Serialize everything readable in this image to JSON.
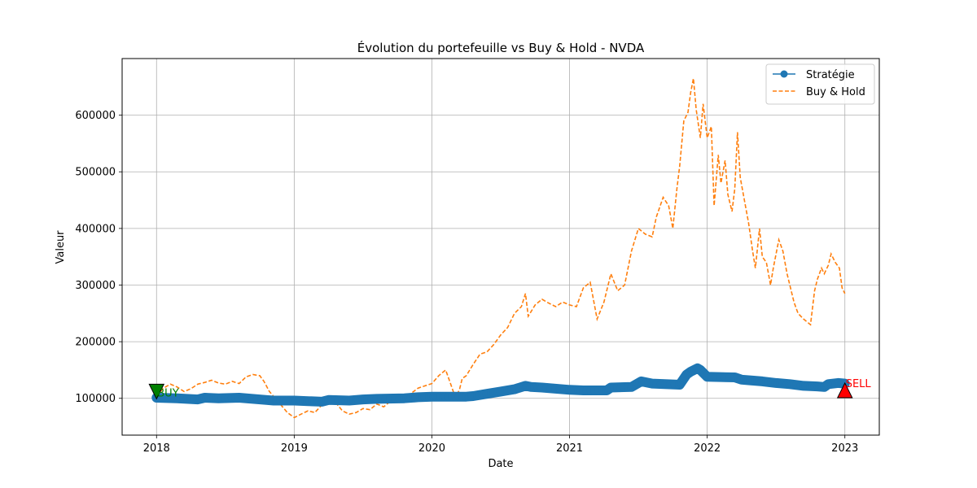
{
  "chart_data": {
    "type": "line",
    "title": "Évolution du portefeuille vs Buy & Hold - NVDA",
    "xlabel": "Date",
    "ylabel": "Valeur",
    "xlim": [
      2017.75,
      2023.25
    ],
    "ylim": [
      35000,
      700000
    ],
    "grid": true,
    "legend_position": "top-right",
    "x_ticks": [
      2018,
      2019,
      2020,
      2021,
      2022,
      2023
    ],
    "x_tick_labels": [
      "2018",
      "2019",
      "2020",
      "2021",
      "2022",
      "2023"
    ],
    "y_ticks": [
      100000,
      200000,
      300000,
      400000,
      500000,
      600000
    ],
    "y_tick_labels": [
      "100000",
      "200000",
      "300000",
      "400000",
      "500000",
      "600000"
    ],
    "series": [
      {
        "name": "Stratégie",
        "color": "#1f77b4",
        "style": "solid-marker",
        "x": [
          2018.0,
          2018.15,
          2018.3,
          2018.35,
          2018.45,
          2018.6,
          2018.8,
          2018.85,
          2019.0,
          2019.1,
          2019.2,
          2019.25,
          2019.4,
          2019.5,
          2019.6,
          2019.8,
          2019.9,
          2020.0,
          2020.1,
          2020.25,
          2020.3,
          2020.4,
          2020.5,
          2020.6,
          2020.68,
          2020.72,
          2020.8,
          2021.0,
          2021.1,
          2021.27,
          2021.3,
          2021.45,
          2021.52,
          2021.6,
          2021.8,
          2021.85,
          2021.88,
          2021.93,
          2021.95,
          2022.0,
          2022.2,
          2022.25,
          2022.3,
          2022.4,
          2022.5,
          2022.6,
          2022.7,
          2022.8,
          2022.85,
          2022.88,
          2022.95,
          2023.0
        ],
        "y": [
          101000,
          100000,
          98000,
          101000,
          100000,
          101000,
          97000,
          96000,
          96000,
          95000,
          94000,
          97000,
          96000,
          98000,
          99000,
          100000,
          102000,
          103000,
          103000,
          103000,
          104000,
          108000,
          112000,
          116000,
          122000,
          120000,
          119000,
          115000,
          114000,
          114000,
          119000,
          120000,
          130000,
          126000,
          124000,
          142000,
          147000,
          153000,
          150000,
          138000,
          137000,
          133000,
          132000,
          130000,
          127000,
          125000,
          122000,
          121000,
          120000,
          125000,
          127000,
          126000
        ]
      },
      {
        "name": "Buy & Hold",
        "color": "#ff7f0e",
        "style": "dashed",
        "x": [
          2018.0,
          2018.05,
          2018.1,
          2018.15,
          2018.2,
          2018.25,
          2018.3,
          2018.35,
          2018.4,
          2018.45,
          2018.5,
          2018.55,
          2018.6,
          2018.65,
          2018.7,
          2018.75,
          2018.78,
          2018.82,
          2018.88,
          2018.95,
          2019.0,
          2019.05,
          2019.1,
          2019.15,
          2019.2,
          2019.25,
          2019.3,
          2019.35,
          2019.4,
          2019.45,
          2019.5,
          2019.55,
          2019.6,
          2019.65,
          2019.7,
          2019.75,
          2019.8,
          2019.85,
          2019.9,
          2019.95,
          2020.0,
          2020.05,
          2020.1,
          2020.13,
          2020.17,
          2020.2,
          2020.22,
          2020.25,
          2020.3,
          2020.35,
          2020.4,
          2020.45,
          2020.5,
          2020.55,
          2020.6,
          2020.65,
          2020.68,
          2020.7,
          2020.75,
          2020.8,
          2020.85,
          2020.9,
          2020.95,
          2021.0,
          2021.05,
          2021.1,
          2021.15,
          2021.2,
          2021.25,
          2021.3,
          2021.35,
          2021.4,
          2021.45,
          2021.5,
          2021.55,
          2021.6,
          2021.63,
          2021.68,
          2021.72,
          2021.75,
          2021.78,
          2021.8,
          2021.83,
          2021.86,
          2021.88,
          2021.9,
          2021.92,
          2021.95,
          2021.97,
          2022.0,
          2022.03,
          2022.05,
          2022.08,
          2022.1,
          2022.13,
          2022.15,
          2022.18,
          2022.2,
          2022.22,
          2022.24,
          2022.27,
          2022.3,
          2022.33,
          2022.35,
          2022.38,
          2022.4,
          2022.43,
          2022.46,
          2022.48,
          2022.52,
          2022.55,
          2022.58,
          2022.6,
          2022.63,
          2022.66,
          2022.7,
          2022.75,
          2022.78,
          2022.8,
          2022.83,
          2022.85,
          2022.88,
          2022.9,
          2022.93,
          2022.96,
          2022.98,
          2023.0
        ],
        "y": [
          104000,
          118000,
          125000,
          120000,
          112000,
          117000,
          125000,
          128000,
          132000,
          127000,
          125000,
          130000,
          126000,
          138000,
          142000,
          140000,
          130000,
          112000,
          95000,
          75000,
          66000,
          72000,
          78000,
          75000,
          88000,
          96000,
          93000,
          78000,
          72000,
          75000,
          82000,
          80000,
          90000,
          85000,
          95000,
          104000,
          100000,
          109000,
          118000,
          122000,
          126000,
          140000,
          150000,
          130000,
          102000,
          115000,
          135000,
          140000,
          160000,
          178000,
          182000,
          195000,
          212000,
          225000,
          250000,
          262000,
          285000,
          245000,
          265000,
          275000,
          268000,
          262000,
          270000,
          265000,
          262000,
          295000,
          305000,
          240000,
          270000,
          320000,
          290000,
          300000,
          360000,
          400000,
          390000,
          385000,
          420000,
          455000,
          440000,
          400000,
          470000,
          510000,
          590000,
          605000,
          640000,
          665000,
          610000,
          560000,
          620000,
          560000,
          580000,
          440000,
          530000,
          480000,
          520000,
          460000,
          430000,
          470000,
          570000,
          490000,
          450000,
          410000,
          360000,
          330000,
          400000,
          350000,
          340000,
          300000,
          330000,
          380000,
          360000,
          320000,
          300000,
          270000,
          250000,
          240000,
          230000,
          290000,
          310000,
          330000,
          320000,
          335000,
          355000,
          340000,
          330000,
          295000,
          285000
        ]
      }
    ],
    "annotations": [
      {
        "text": "BUY",
        "x": 2018.0,
        "y": 112000,
        "color": "#008000",
        "marker": "triangle-down"
      },
      {
        "text": "SELL",
        "x": 2023.0,
        "y": 114000,
        "color": "#ff0000",
        "marker": "triangle-up"
      }
    ]
  }
}
